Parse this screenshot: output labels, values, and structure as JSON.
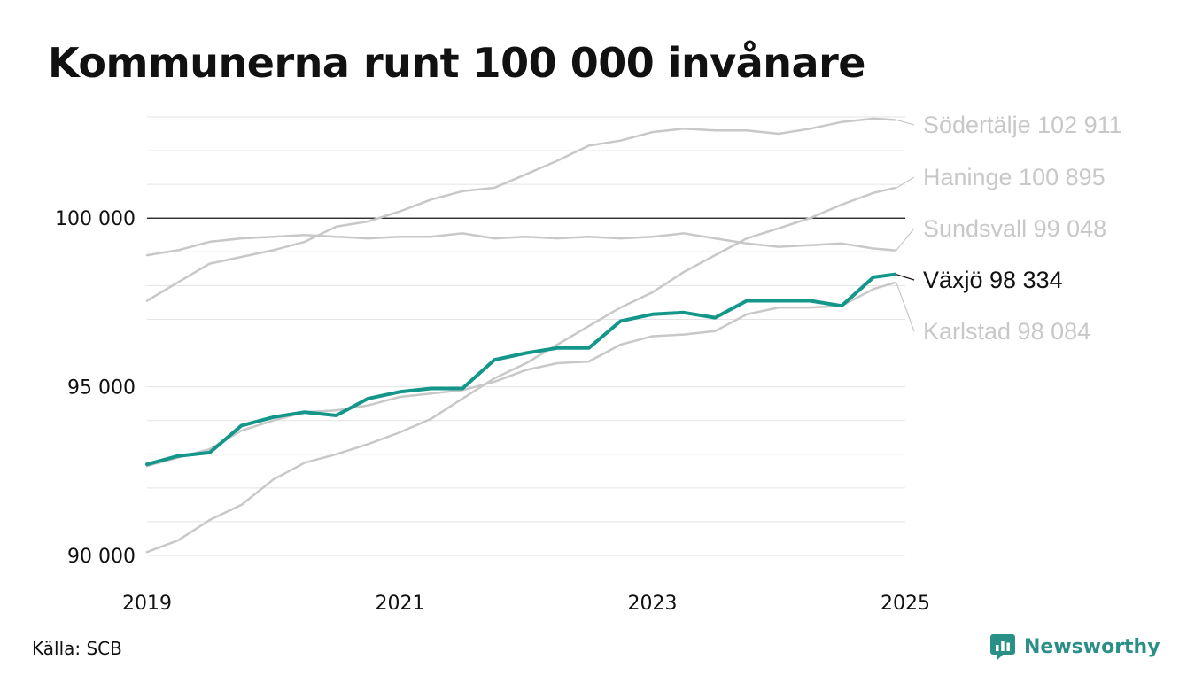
{
  "colors": {
    "highlight": "#14978a",
    "context": "#c8c8c8",
    "grid": "#e3e3e3",
    "baseline": "#111111",
    "brand": "#2a8f86"
  },
  "brand": {
    "name": "Newsworthy",
    "icon": "newsworthy-logo-icon"
  },
  "source": "Källa: SCB",
  "chart_data": {
    "type": "line",
    "title": "Kommunerna runt 100 000 invånare",
    "xlabel": "",
    "ylabel": "",
    "x_range": [
      "2019-01",
      "2024-12"
    ],
    "ylim": [
      90000,
      103000
    ],
    "y_ticks": [
      {
        "value": 90000,
        "label": "90 000"
      },
      {
        "value": 95000,
        "label": "95 000"
      },
      {
        "value": 100000,
        "label": "100 000"
      }
    ],
    "x_ticks": [
      {
        "value": "2019-01",
        "label": "2019"
      },
      {
        "value": "2021-01",
        "label": "2021"
      },
      {
        "value": "2023-01",
        "label": "2023"
      },
      {
        "value": "2025-01",
        "label": "2025"
      }
    ],
    "grid": true,
    "legend": "end-of-line labels",
    "series": [
      {
        "name": "Södertälje",
        "end_label": "Södertälje 102 911",
        "highlight": false,
        "x": [
          "2019-01",
          "2019-04",
          "2019-07",
          "2019-10",
          "2020-01",
          "2020-04",
          "2020-07",
          "2020-10",
          "2021-01",
          "2021-04",
          "2021-07",
          "2021-10",
          "2022-01",
          "2022-04",
          "2022-07",
          "2022-10",
          "2023-01",
          "2023-04",
          "2023-07",
          "2023-10",
          "2024-01",
          "2024-04",
          "2024-07",
          "2024-10",
          "2024-12"
        ],
        "values": [
          97550,
          98100,
          98650,
          98850,
          99050,
          99300,
          99750,
          99900,
          100200,
          100550,
          100800,
          100900,
          101300,
          101700,
          102150,
          102300,
          102550,
          102650,
          102600,
          102600,
          102500,
          102650,
          102850,
          102950,
          102911
        ]
      },
      {
        "name": "Haninge",
        "end_label": "Haninge 100 895",
        "highlight": false,
        "x": [
          "2019-01",
          "2019-04",
          "2019-07",
          "2019-10",
          "2020-01",
          "2020-04",
          "2020-07",
          "2020-10",
          "2021-01",
          "2021-04",
          "2021-07",
          "2021-10",
          "2022-01",
          "2022-04",
          "2022-07",
          "2022-10",
          "2023-01",
          "2023-04",
          "2023-07",
          "2023-10",
          "2024-01",
          "2024-04",
          "2024-07",
          "2024-10",
          "2024-12"
        ],
        "values": [
          90100,
          90450,
          91050,
          91500,
          92250,
          92750,
          93000,
          93300,
          93650,
          94050,
          94650,
          95250,
          95700,
          96250,
          96800,
          97350,
          97800,
          98400,
          98900,
          99400,
          99700,
          100000,
          100400,
          100750,
          100895
        ]
      },
      {
        "name": "Sundsvall",
        "end_label": "Sundsvall  99 048",
        "highlight": false,
        "x": [
          "2019-01",
          "2019-04",
          "2019-07",
          "2019-10",
          "2020-01",
          "2020-04",
          "2020-07",
          "2020-10",
          "2021-01",
          "2021-04",
          "2021-07",
          "2021-10",
          "2022-01",
          "2022-04",
          "2022-07",
          "2022-10",
          "2023-01",
          "2023-04",
          "2023-07",
          "2023-10",
          "2024-01",
          "2024-04",
          "2024-07",
          "2024-10",
          "2024-12"
        ],
        "values": [
          98900,
          99050,
          99300,
          99400,
          99450,
          99500,
          99450,
          99400,
          99450,
          99450,
          99550,
          99400,
          99450,
          99400,
          99450,
          99400,
          99450,
          99550,
          99400,
          99250,
          99150,
          99200,
          99250,
          99100,
          99048
        ]
      },
      {
        "name": "Karlstad",
        "end_label": "Karlstad  98 084",
        "highlight": false,
        "x": [
          "2019-01",
          "2019-04",
          "2019-07",
          "2019-10",
          "2020-01",
          "2020-04",
          "2020-07",
          "2020-10",
          "2021-01",
          "2021-04",
          "2021-07",
          "2021-10",
          "2022-01",
          "2022-04",
          "2022-07",
          "2022-10",
          "2023-01",
          "2023-04",
          "2023-07",
          "2023-10",
          "2024-01",
          "2024-04",
          "2024-07",
          "2024-10",
          "2024-12"
        ],
        "values": [
          92650,
          92900,
          93150,
          93700,
          94000,
          94250,
          94300,
          94450,
          94700,
          94800,
          94900,
          95150,
          95500,
          95700,
          95750,
          96250,
          96500,
          96550,
          96650,
          97150,
          97350,
          97350,
          97400,
          97900,
          98084
        ]
      },
      {
        "name": "Växjö",
        "end_label": "Växjö  98 334",
        "highlight": true,
        "x": [
          "2019-01",
          "2019-04",
          "2019-07",
          "2019-10",
          "2020-01",
          "2020-04",
          "2020-07",
          "2020-10",
          "2021-01",
          "2021-04",
          "2021-07",
          "2021-10",
          "2022-01",
          "2022-04",
          "2022-07",
          "2022-10",
          "2023-01",
          "2023-04",
          "2023-07",
          "2023-10",
          "2024-01",
          "2024-04",
          "2024-07",
          "2024-10",
          "2024-12"
        ],
        "values": [
          92700,
          92950,
          93050,
          93850,
          94100,
          94250,
          94150,
          94650,
          94850,
          94950,
          94950,
          95800,
          96000,
          96150,
          96150,
          96950,
          97150,
          97200,
          97050,
          97550,
          97550,
          97550,
          97400,
          98250,
          98334
        ]
      }
    ],
    "end_label_positions": [
      "Södertälje",
      "Haninge",
      "Sundsvall",
      "Växjö",
      "Karlstad"
    ]
  }
}
